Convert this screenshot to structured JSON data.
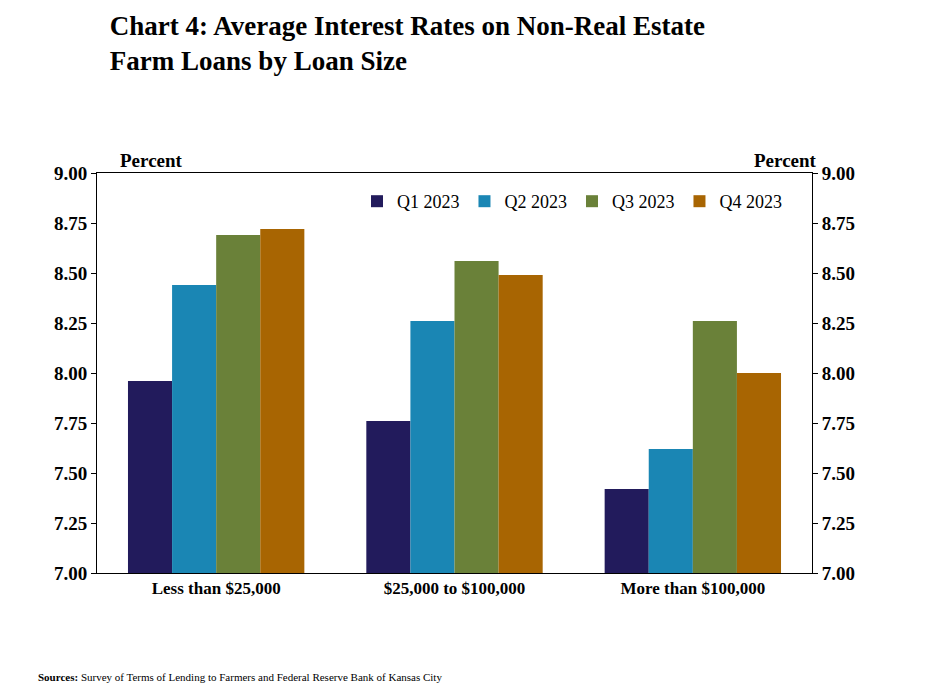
{
  "chart_data": {
    "type": "bar",
    "title": "Chart 4: Average Interest Rates on Non-Real Estate\nFarm Loans by Loan Size",
    "ylabel": "Percent",
    "y2label": "Percent",
    "source_label": "Sources:",
    "source": "Survey of Terms of Lending to Farmers and Federal Reserve Bank of Kansas City",
    "categories": [
      "Less than $25,000",
      "$25,000 to $100,000",
      "More than $100,000"
    ],
    "series": [
      {
        "name": "Q1 2023",
        "color": "#221b5c",
        "values": [
          7.96,
          7.76,
          7.42
        ]
      },
      {
        "name": "Q2 2023",
        "color": "#1a86b4",
        "values": [
          8.44,
          8.26,
          7.62
        ]
      },
      {
        "name": "Q3 2023",
        "color": "#6a8139",
        "values": [
          8.69,
          8.56,
          8.26
        ]
      },
      {
        "name": "Q4 2023",
        "color": "#a86502",
        "values": [
          8.72,
          8.49,
          8.0
        ]
      }
    ],
    "ylim": [
      7,
      9
    ],
    "yticks": [
      {
        "value": 7,
        "label": "7.00"
      },
      {
        "value": 7.25,
        "label": "7.25"
      },
      {
        "value": 7.5,
        "label": "7.50"
      },
      {
        "value": 7.75,
        "label": "7.75"
      },
      {
        "value": 8,
        "label": "8.00"
      },
      {
        "value": 8.25,
        "label": "8.25"
      },
      {
        "value": 8.5,
        "label": "8.50"
      },
      {
        "value": 8.75,
        "label": "8.75"
      },
      {
        "value": 9,
        "label": "9.00"
      }
    ],
    "y2lim": [
      7,
      9
    ],
    "y2ticks": [
      {
        "value": 7,
        "label": "7.00"
      },
      {
        "value": 7.25,
        "label": "7.25"
      },
      {
        "value": 7.5,
        "label": "7.50"
      },
      {
        "value": 7.75,
        "label": "7.75"
      },
      {
        "value": 8,
        "label": "8.00"
      },
      {
        "value": 8.25,
        "label": "8.25"
      },
      {
        "value": 8.5,
        "label": "8.50"
      },
      {
        "value": 8.75,
        "label": "8.75"
      },
      {
        "value": 9,
        "label": "9.00"
      }
    ],
    "grid": false,
    "legend": "top"
  }
}
